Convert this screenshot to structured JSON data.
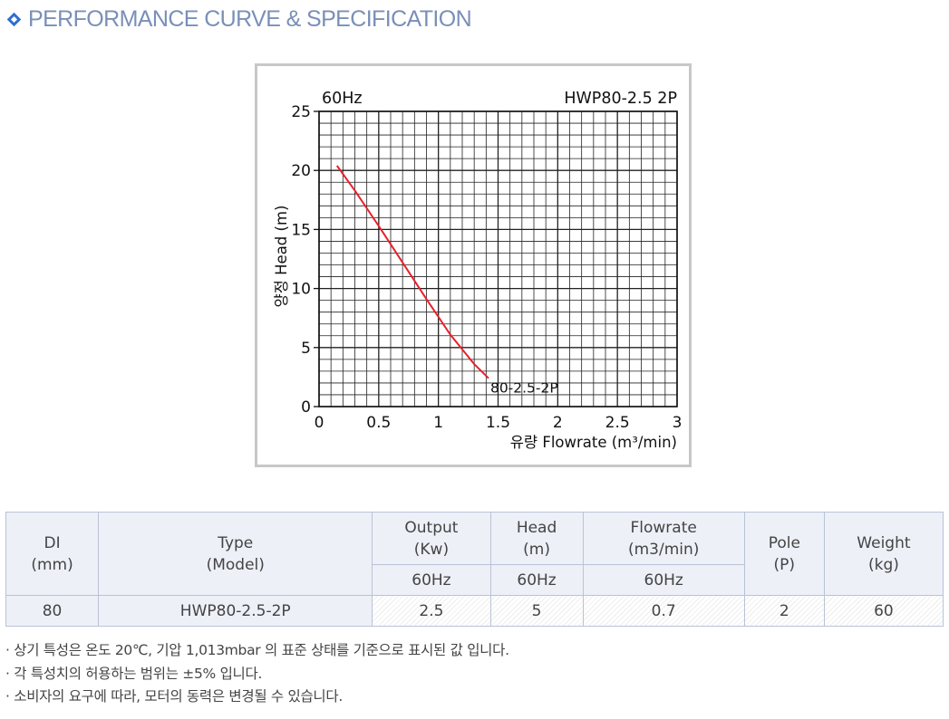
{
  "header": {
    "title": "PERFORMANCE CURVE & SPECIFICATION"
  },
  "chart_data": {
    "type": "line",
    "freq_label": "60Hz",
    "model_label": "HWP80-2.5 2P",
    "ylabel": "양정 Head (m)",
    "xlabel": "유량 Flowrate (m³/min)",
    "xlim": [
      0,
      3
    ],
    "ylim": [
      0,
      25
    ],
    "x_ticks": [
      "0",
      "0.5",
      "1",
      "1.5",
      "2",
      "2.5",
      "3"
    ],
    "y_ticks": [
      "0",
      "5",
      "10",
      "15",
      "20",
      "25"
    ],
    "grid": true,
    "series": [
      {
        "name": "80-2.5-2P",
        "color": "#e8202a",
        "x": [
          0.15,
          0.3,
          0.5,
          0.7,
          0.9,
          1.1,
          1.3,
          1.42
        ],
        "y": [
          20.4,
          18.3,
          15.3,
          12.2,
          9.1,
          6.1,
          3.6,
          2.4
        ]
      }
    ]
  },
  "table": {
    "headers": {
      "di": "DI",
      "di_unit": "(mm)",
      "type": "Type",
      "type_sub": "(Model)",
      "output": "Output",
      "output_unit": "(Kw)",
      "head": "Head",
      "head_unit": "(m)",
      "flowrate": "Flowrate",
      "flowrate_unit": "(m3/min)",
      "pole": "Pole",
      "pole_unit": "(P)",
      "weight": "Weight",
      "weight_unit": "(kg)"
    },
    "sub": {
      "output": "60Hz",
      "head": "60Hz",
      "flowrate": "60Hz"
    },
    "row": {
      "di": "80",
      "model": "HWP80-2.5-2P",
      "output": "2.5",
      "head": "5",
      "flowrate": "0.7",
      "pole": "2",
      "weight": "60"
    }
  },
  "notes": [
    "· 상기 특성은 온도 20℃, 기압 1,013mbar 의 표준 상태를 기준으로 표시된 값 입니다.",
    "· 각 특성치의 허용하는 범위는 ±5% 입니다.",
    "· 소비자의 요구에 따라, 모터의 동력은 변경될 수 있습니다."
  ]
}
